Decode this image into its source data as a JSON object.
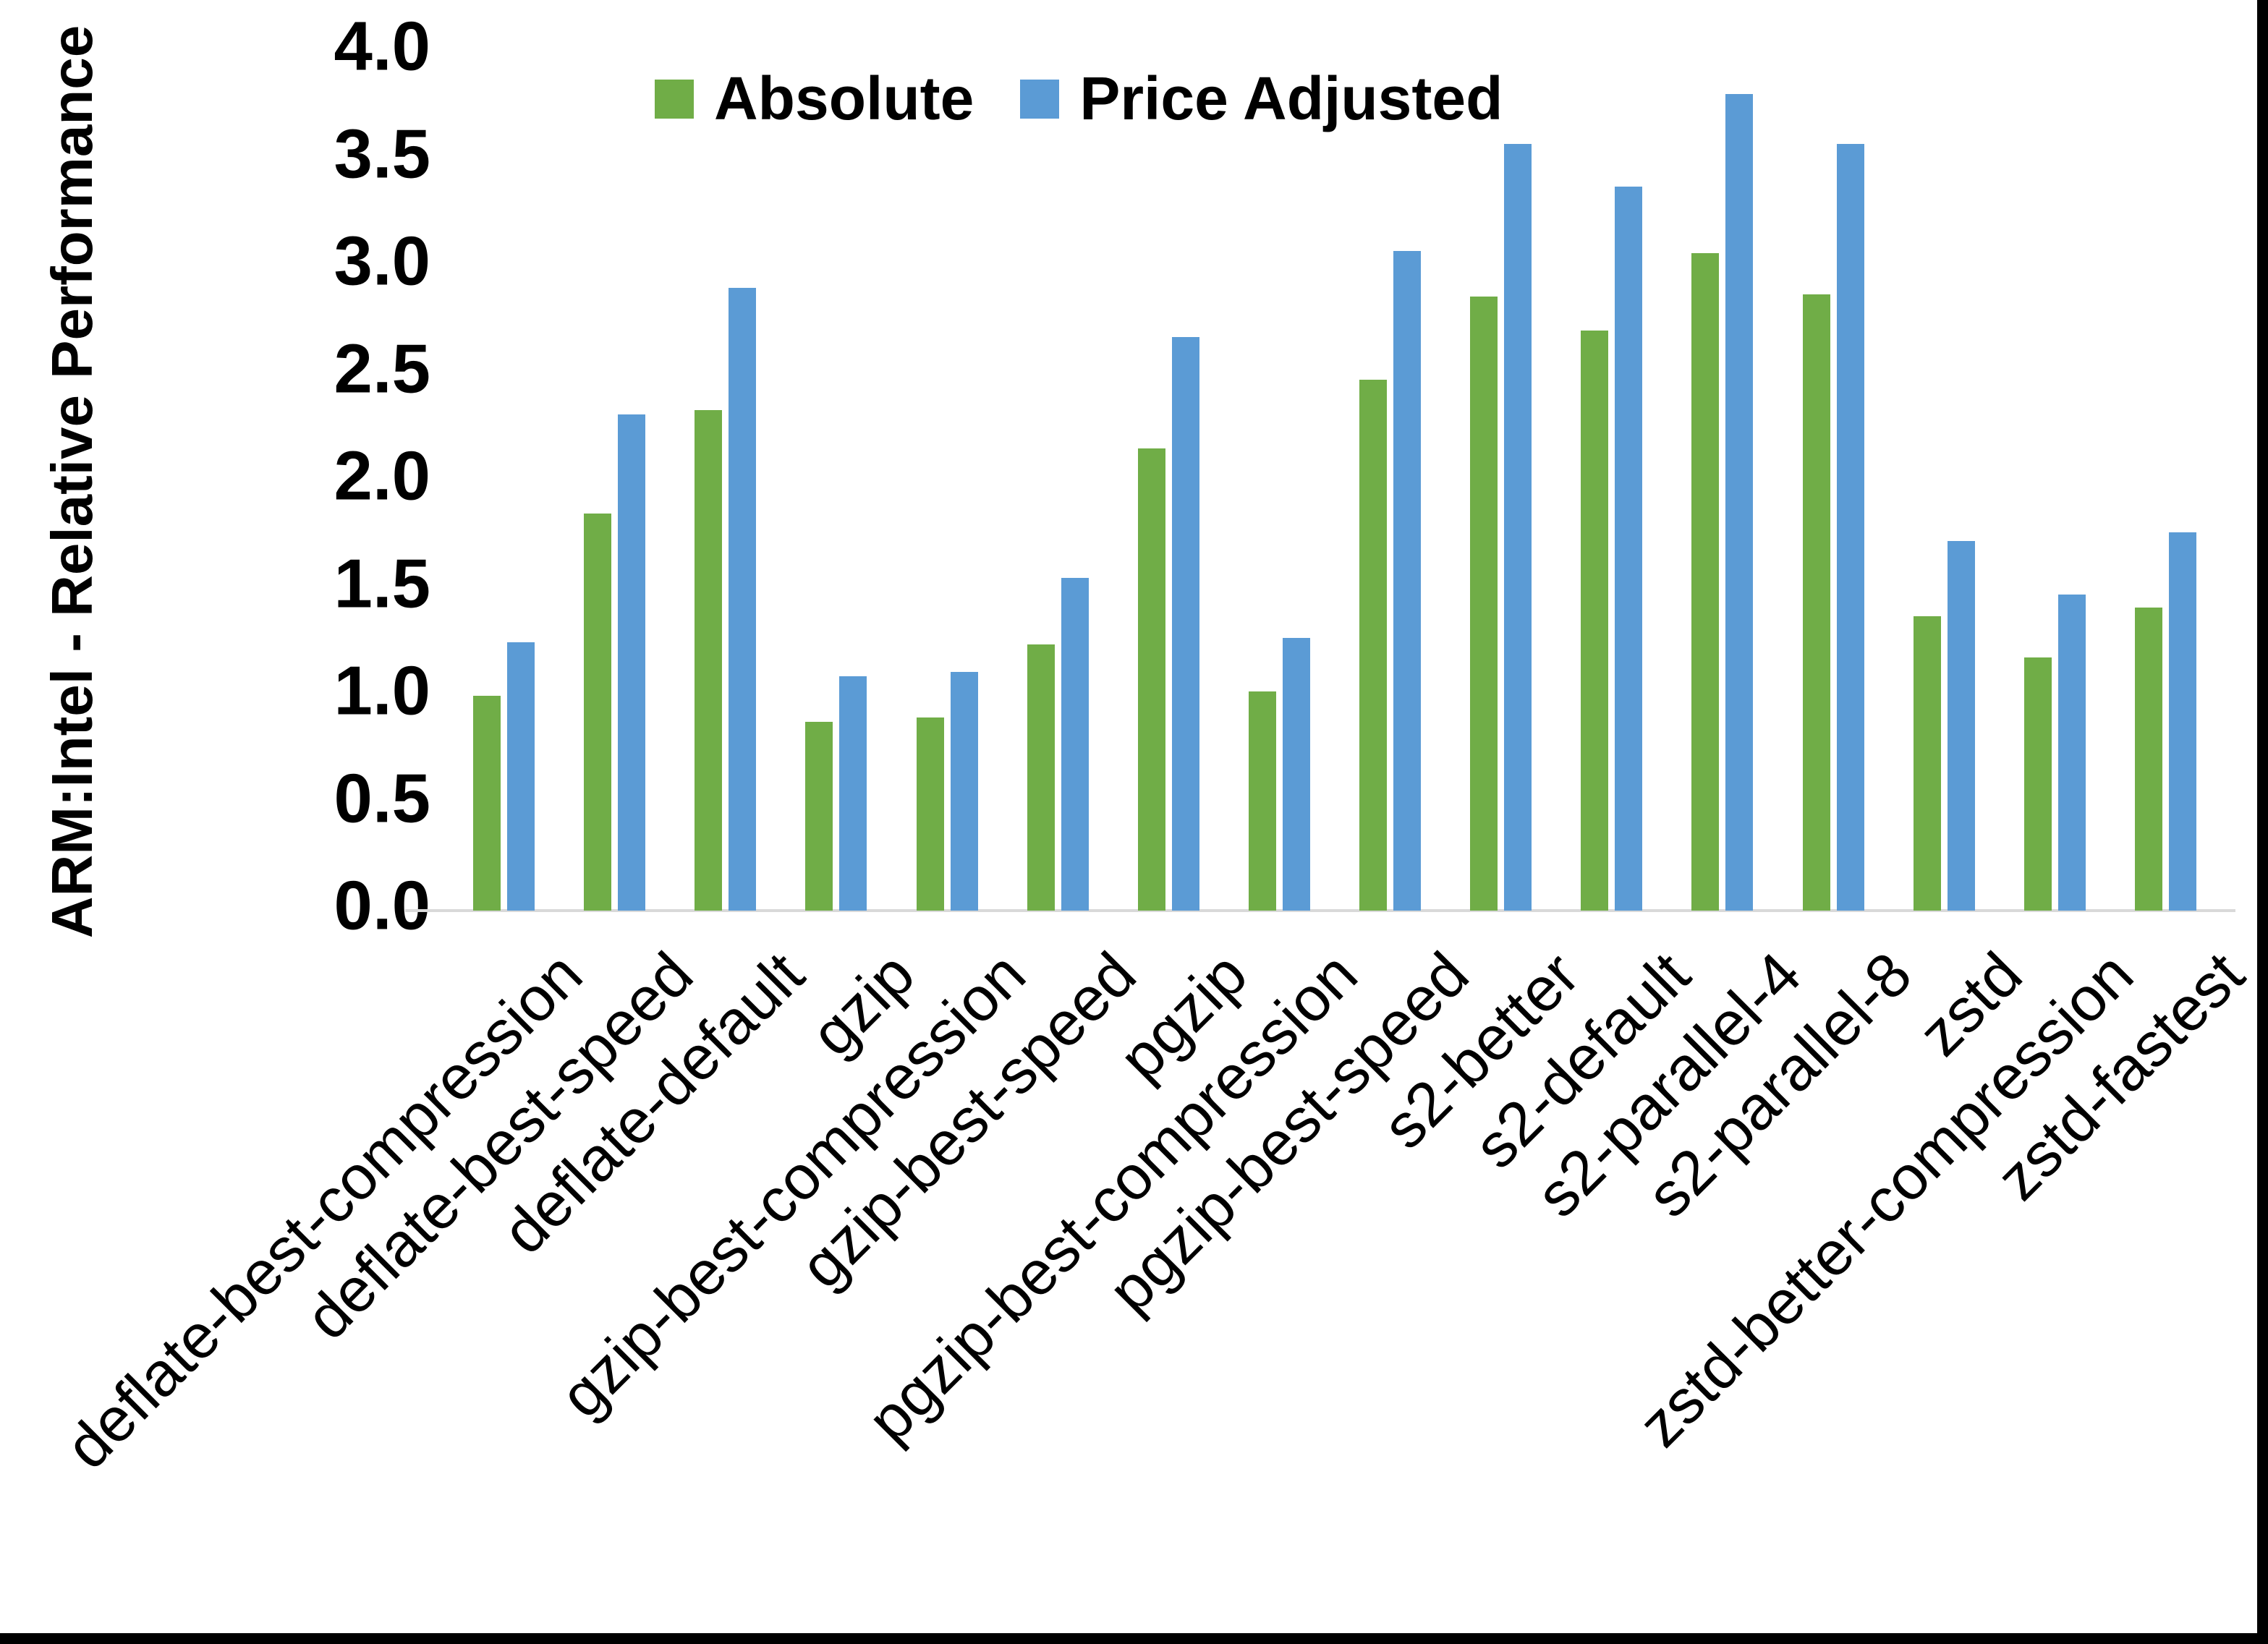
{
  "chart_data": {
    "type": "bar",
    "title": "",
    "xlabel": "",
    "ylabel": "ARM:Intel - Relative Performance",
    "ylim": [
      0.0,
      4.0
    ],
    "yticks": [
      "0.0",
      "0.5",
      "1.0",
      "1.5",
      "2.0",
      "2.5",
      "3.0",
      "3.5",
      "4.0"
    ],
    "grid": false,
    "legend_position": "top",
    "categories": [
      "deflate-best-compression",
      "deflate-best-speed",
      "deflate-default",
      "gzip",
      "gzip-best-compression",
      "gzip-best-speed",
      "pgzip",
      "pgzip-best-compression",
      "pgzip-best-speed",
      "s2-better",
      "s2-default",
      "s2-parallel-4",
      "s2-parallel-8",
      "zstd",
      "zstd-better-compression",
      "zstd-fastest"
    ],
    "series": [
      {
        "name": "Absolute",
        "color": "#70AD47",
        "values": [
          1.0,
          1.85,
          2.33,
          0.88,
          0.9,
          1.24,
          2.15,
          1.02,
          2.47,
          2.86,
          2.7,
          3.06,
          2.87,
          1.37,
          1.18,
          1.41
        ]
      },
      {
        "name": "Price Adjusted",
        "color": "#5B9BD5",
        "values": [
          1.25,
          2.31,
          2.9,
          1.09,
          1.11,
          1.55,
          2.67,
          1.27,
          3.07,
          3.57,
          3.37,
          3.8,
          3.57,
          1.72,
          1.47,
          1.76
        ]
      }
    ],
    "colors": {
      "axis_line": "#D9D9D9",
      "text": "#000000",
      "background": "#FFFFFF",
      "frame_edge": "#000000"
    }
  }
}
